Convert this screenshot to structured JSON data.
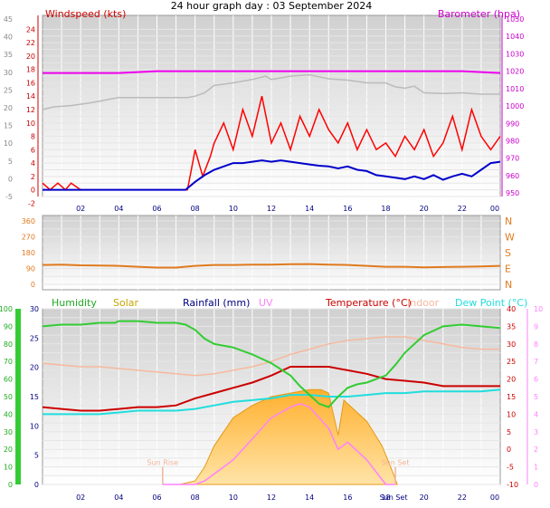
{
  "title": "24 hour graph day : 03 September 2024",
  "colors": {
    "wind": "#ff0000",
    "windAvg": "#0000cc",
    "gust": "#bbbbbb",
    "baro": "#ee00ee",
    "dir": "#e07a1e",
    "humidity": "#33cc33",
    "solar": "#ffbb33",
    "rain": "#000080",
    "uv": "#ff80ff",
    "temp": "#cc0000",
    "indoor": "#f6b99e",
    "dew": "#22dddd",
    "sun": "#f0b49a"
  },
  "x_ticks": [
    "02",
    "04",
    "06",
    "08",
    "10",
    "12",
    "14",
    "16",
    "18",
    "20",
    "22",
    "00"
  ],
  "panels": {
    "wind": {
      "label_left": "Windspeed (kts)",
      "label_right": "Barometer (hpa)",
      "ticks_outer": [
        "45",
        "40",
        "35",
        "30",
        "25",
        "20",
        "15",
        "10",
        "5",
        "0",
        "-5"
      ],
      "ticks_inner": [
        "24",
        "22",
        "20",
        "18",
        "16",
        "14",
        "12",
        "10",
        "8",
        "6",
        "4",
        "2",
        "0",
        "-2"
      ],
      "ticks_baro": [
        "1050",
        "1040",
        "1030",
        "1020",
        "1010",
        "1000",
        "990",
        "980",
        "970",
        "960",
        "950"
      ]
    },
    "direction": {
      "ticks_left": [
        "360",
        "270",
        "180",
        "90",
        "0"
      ],
      "ticks_right": [
        "N",
        "W",
        "S",
        "E",
        "N"
      ]
    },
    "temperature": {
      "labels": [
        "Humidity",
        "Solar",
        "Rainfall (mm)",
        "UV",
        "Temperature (°C)",
        "Indoor",
        "Dew Point (°C)"
      ],
      "ticks_hum": [
        "100",
        "90",
        "80",
        "70",
        "60",
        "50",
        "40",
        "30",
        "20",
        "10",
        "0"
      ],
      "ticks_rain": [
        "30",
        "25",
        "20",
        "15",
        "10",
        "5",
        "0"
      ],
      "ticks_temp": [
        "40",
        "35",
        "30",
        "25",
        "20",
        "15",
        "10",
        "5",
        "0",
        "-5",
        "-10"
      ],
      "ticks_uv": [
        "10",
        "9",
        "8",
        "7",
        "6",
        "5",
        "4",
        "3",
        "2",
        "1",
        "0"
      ],
      "sunrise_label": "Sun Rise",
      "sunset_label": "Sun Set",
      "sunset_time_label": "Sun Set"
    }
  },
  "chart_data": [
    {
      "type": "line",
      "title": "24 hour graph day : 03 September 2024",
      "x_unit": "hour",
      "xlim": [
        0,
        24
      ],
      "ylabel": "Windspeed (kts)",
      "ylim": [
        -1,
        25
      ],
      "y2label": "Barometer (hpa)",
      "y2lim": [
        948,
        1050
      ],
      "series": [
        {
          "axis": "y2",
          "x": [
            0,
            2,
            4,
            6,
            8,
            10,
            12,
            14,
            16,
            18,
            20,
            22,
            24
          ],
          "values": [
            1019,
            1019,
            1019,
            1020,
            1020,
            1020,
            1020,
            1020,
            1020,
            1020,
            1020,
            1020,
            1019
          ]
        },
        {
          "axis": "y",
          "x": [
            0,
            0.6,
            1.5,
            2.5,
            4,
            6,
            7.6,
            8,
            8.5,
            9,
            10,
            11,
            11.7,
            12,
            13,
            14,
            15,
            16,
            17,
            18,
            18.5,
            19,
            19.5,
            20,
            21,
            22,
            23,
            24
          ],
          "values": [
            12,
            12.4,
            12.6,
            13,
            13.8,
            13.8,
            13.8,
            14,
            14.5,
            15.6,
            16,
            16.5,
            17,
            16.5,
            17,
            17.2,
            16.6,
            16.4,
            16,
            16,
            15.4,
            15.2,
            15.5,
            14.5,
            14.4,
            14.5,
            14.3,
            14.3
          ]
        },
        {
          "axis": "y",
          "x": [
            0,
            0.4,
            0.8,
            1.2,
            1.5,
            2,
            4,
            6,
            7.6,
            7.8,
            8,
            8.4,
            8.8,
            9,
            9.5,
            10,
            10.5,
            11,
            11.5,
            12,
            12.5,
            13,
            13.5,
            14,
            14.5,
            15,
            15.5,
            16,
            16.5,
            17,
            17.5,
            18,
            18.5,
            19,
            19.5,
            20,
            20.5,
            21,
            21.5,
            22,
            22.5,
            23,
            23.5,
            24
          ],
          "values": [
            1,
            0,
            1,
            0,
            1,
            0,
            0,
            0,
            0,
            3,
            6,
            2,
            5,
            7,
            10,
            6,
            12,
            8,
            14,
            7,
            10,
            6,
            11,
            8,
            12,
            9,
            7,
            10,
            6,
            9,
            6,
            7,
            5,
            8,
            6,
            9,
            5,
            7,
            11,
            6,
            12,
            8,
            6,
            8
          ]
        },
        {
          "axis": "y",
          "x": [
            0,
            2,
            4,
            6,
            7.5,
            8,
            8.5,
            9,
            9.5,
            10,
            10.5,
            11,
            11.5,
            12,
            12.5,
            13,
            13.5,
            14,
            14.5,
            15,
            15.5,
            16,
            16.5,
            17,
            17.5,
            18,
            18.5,
            19,
            19.5,
            20,
            20.5,
            21,
            21.5,
            22,
            22.5,
            23,
            23.5,
            24
          ],
          "values": [
            0,
            0,
            0,
            0,
            0,
            1.2,
            2.2,
            3,
            3.5,
            4,
            4,
            4.2,
            4.4,
            4.2,
            4.4,
            4.2,
            4,
            3.8,
            3.6,
            3.5,
            3.2,
            3.5,
            3,
            2.8,
            2.2,
            2,
            1.8,
            1.6,
            2,
            1.6,
            2.2,
            1.5,
            2,
            2.4,
            2,
            3,
            4,
            4.2
          ]
        }
      ]
    },
    {
      "type": "line",
      "x_unit": "hour",
      "xlim": [
        0,
        24
      ],
      "ylim": [
        0,
        360
      ],
      "series": [
        {
          "x": [
            0,
            1,
            2,
            3,
            4,
            5,
            6,
            7,
            8,
            9,
            10,
            11,
            12,
            13,
            14,
            15,
            16,
            17,
            18,
            19,
            20,
            21,
            22,
            23,
            24
          ],
          "values": [
            110,
            112,
            108,
            107,
            105,
            100,
            95,
            95,
            105,
            110,
            110,
            112,
            112,
            114,
            115,
            112,
            110,
            105,
            100,
            100,
            96,
            98,
            100,
            102,
            105
          ]
        }
      ]
    },
    {
      "type": "area",
      "x_unit": "hour",
      "xlim": [
        0,
        24
      ],
      "ylim": [
        0,
        100
      ],
      "y2lim": [
        -10,
        40
      ],
      "series": [
        {
          "axis": "y",
          "x": [
            0,
            1,
            2,
            3,
            3.8,
            4,
            5,
            6,
            7,
            7.5,
            8,
            8.5,
            9,
            10,
            11,
            12,
            13,
            13.5,
            14,
            14.5,
            15,
            15.5,
            16,
            16.5,
            17,
            18,
            18.5,
            19,
            20,
            21,
            22,
            23,
            24
          ],
          "values": [
            90,
            91,
            91,
            92,
            92,
            93,
            93,
            92,
            92,
            91,
            88,
            83,
            80,
            78,
            74,
            69,
            62,
            56,
            51,
            46,
            44,
            50,
            55,
            57,
            58,
            62,
            68,
            75,
            85,
            90,
            91,
            90,
            89
          ]
        },
        {
          "axis": "y",
          "x": [
            0,
            1,
            2,
            3,
            4,
            5,
            6,
            7,
            8,
            9,
            10,
            11,
            12,
            13,
            14,
            15,
            16,
            17,
            18,
            19,
            20,
            21,
            22,
            23,
            24
          ],
          "values": [
            69,
            68,
            67,
            67,
            66,
            65,
            64,
            63,
            62,
            63,
            65,
            67,
            70,
            74,
            77,
            80,
            82,
            83,
            84,
            84,
            82,
            80,
            78,
            77,
            77
          ]
        },
        {
          "axis": "y",
          "x": [
            0,
            1,
            2,
            3,
            4,
            5,
            6,
            7,
            8,
            9,
            10,
            11,
            12,
            13,
            14,
            15,
            16,
            17,
            18,
            19,
            20,
            21,
            22,
            23,
            24
          ],
          "values": [
            44,
            43,
            42,
            42,
            43,
            44,
            44,
            45,
            49,
            52,
            55,
            58,
            62,
            67,
            67,
            67,
            65,
            63,
            60,
            59,
            58,
            56,
            56,
            56,
            56
          ]
        },
        {
          "axis": "y",
          "x": [
            0,
            1,
            2,
            3,
            4,
            5,
            6,
            7,
            8,
            9,
            10,
            11,
            12,
            13,
            14,
            15,
            16,
            17,
            18,
            19,
            20,
            21,
            22,
            23,
            24
          ],
          "values": [
            40,
            40,
            40,
            40,
            41,
            42,
            42,
            42,
            43,
            45,
            47,
            48,
            49,
            51,
            51,
            50,
            50,
            51,
            52,
            52,
            53,
            53,
            53,
            53,
            54
          ]
        },
        {
          "axis": "y2",
          "x": [
            6.3,
            7,
            8,
            8.5,
            9,
            10,
            11,
            12,
            13,
            13.5,
            14,
            15,
            15.5,
            16,
            17,
            18,
            18.5
          ],
          "values": [
            -10,
            -10,
            -10,
            -9,
            -7,
            -3,
            3,
            9,
            12,
            13,
            12,
            6,
            0,
            2,
            -3,
            -10,
            -10
          ]
        },
        {
          "axis": "y",
          "x": [
            6.5,
            7.2,
            8,
            8.5,
            9,
            10,
            11,
            12,
            13,
            14,
            14.6,
            15,
            15.5,
            15.8,
            16,
            17,
            17.8,
            18.4,
            18.6
          ],
          "values": [
            0,
            0,
            2,
            10,
            22,
            38,
            45,
            50,
            52,
            54,
            54,
            52,
            28,
            48,
            46,
            36,
            22,
            6,
            0
          ]
        }
      ]
    }
  ]
}
